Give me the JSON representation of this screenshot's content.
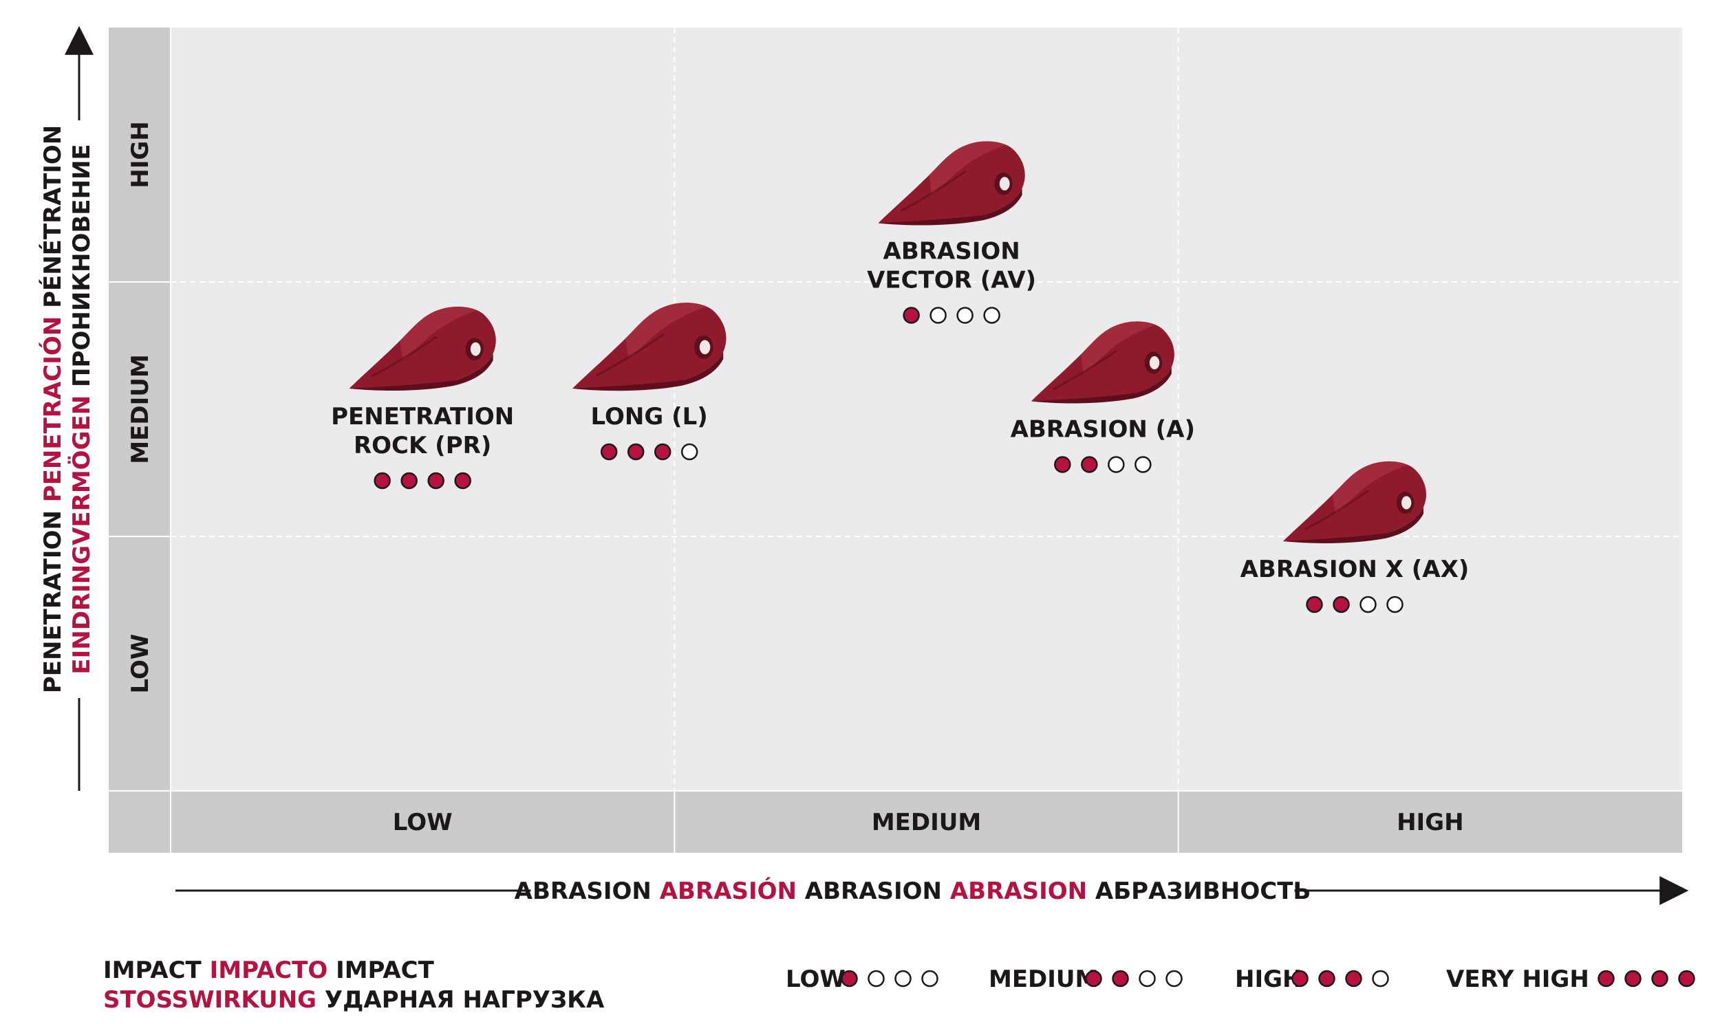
{
  "colors": {
    "accent": "#b5123f",
    "text": "#1c1819",
    "panel": "#ebebed",
    "band": "#cbcbcd",
    "tooth": "#8e1a2c",
    "tooth_dark": "#5e0f1b",
    "tooth_light": "#b03a47"
  },
  "chart_data": {
    "type": "scatter",
    "title": "",
    "x_axis": {
      "categories": [
        "LOW",
        "MEDIUM",
        "HIGH"
      ],
      "label_parts": [
        {
          "text": "ABRASION",
          "color": "text"
        },
        {
          "text": "ABRASIÓN",
          "color": "accent"
        },
        {
          "text": "ABRASION",
          "color": "text"
        },
        {
          "text": "ABRASION",
          "color": "accent"
        },
        {
          "text": "АБРАЗИВНОСТЬ",
          "color": "text"
        }
      ]
    },
    "y_axis": {
      "categories": [
        "LOW",
        "MEDIUM",
        "HIGH"
      ],
      "label_line1": [
        {
          "text": "PENETRATION",
          "color": "text"
        },
        {
          "text": "PENETRACIÓN",
          "color": "accent"
        },
        {
          "text": "PÉNÉTRATION",
          "color": "text"
        }
      ],
      "label_line2": [
        {
          "text": "EINDRINGVERMÖGEN",
          "color": "accent"
        },
        {
          "text": "ПРОНИКНОВЕНИЕ",
          "color": "text"
        }
      ]
    },
    "points": [
      {
        "name": "PENETRATION ROCK (PR)",
        "lines": [
          "PENETRATION",
          "ROCK (PR)"
        ],
        "abrasion": 0.5,
        "penetration": 1.5,
        "impact": 4,
        "tooth": "pr"
      },
      {
        "name": "LONG (L)",
        "lines": [
          "LONG (L)"
        ],
        "abrasion": 0.95,
        "penetration": 1.5,
        "impact": 3,
        "tooth": "long"
      },
      {
        "name": "ABRASION VECTOR (AV)",
        "lines": [
          "ABRASION",
          "VECTOR (AV)"
        ],
        "abrasion": 1.55,
        "penetration": 2.15,
        "impact": 1,
        "tooth": "av"
      },
      {
        "name": "ABRASION (A)",
        "lines": [
          "ABRASION (A)"
        ],
        "abrasion": 1.85,
        "penetration": 1.45,
        "impact": 2,
        "tooth": "a"
      },
      {
        "name": "ABRASION X (AX)",
        "lines": [
          "ABRASION X (AX)"
        ],
        "abrasion": 2.35,
        "penetration": 0.9,
        "impact": 2,
        "tooth": "ax"
      }
    ],
    "impact_scale_max": 4,
    "legend": {
      "title_line1": [
        {
          "text": "IMPACT",
          "color": "text"
        },
        {
          "text": "IMPACTO",
          "color": "accent"
        },
        {
          "text": "IMPACT",
          "color": "text"
        }
      ],
      "title_line2": [
        {
          "text": "STOSSWIRKUNG",
          "color": "accent"
        },
        {
          "text": "УДАРНАЯ НАГРУЗКА",
          "color": "text"
        }
      ],
      "entries": [
        {
          "label": "LOW",
          "filled": 1
        },
        {
          "label": "MEDIUM",
          "filled": 2
        },
        {
          "label": "HIGH",
          "filled": 3
        },
        {
          "label": "VERY HIGH",
          "filled": 4
        }
      ]
    }
  }
}
